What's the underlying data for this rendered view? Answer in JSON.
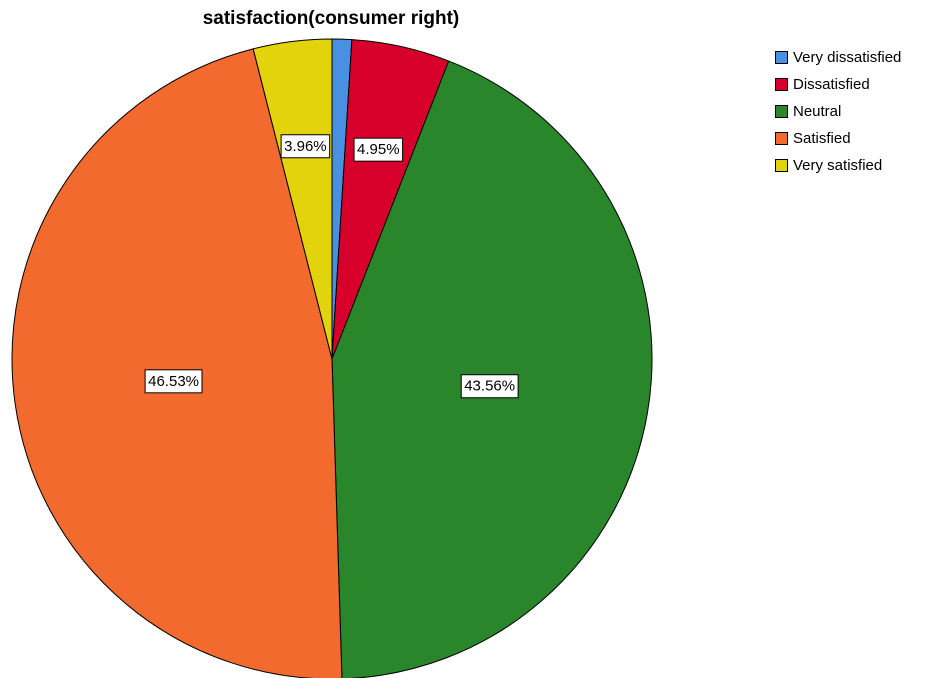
{
  "chart_data": {
    "type": "pie",
    "title": "satisfaction(consumer right)",
    "categories": [
      "Very dissatisfied",
      "Dissatisfied",
      "Neutral",
      "Satisfied",
      "Very satisfied"
    ],
    "values": [
      0.99,
      4.95,
      43.56,
      46.53,
      3.96
    ],
    "value_unit": "percent",
    "data_labels": [
      "",
      "4.95%",
      "43.56%",
      "46.53%",
      "3.96%"
    ],
    "colors": [
      "#4a90e2",
      "#d6002a",
      "#2a862a",
      "#f26a2d",
      "#e2d30d"
    ],
    "start_angle": "12 o'clock",
    "direction": "clockwise",
    "legend_position": "top-right"
  }
}
